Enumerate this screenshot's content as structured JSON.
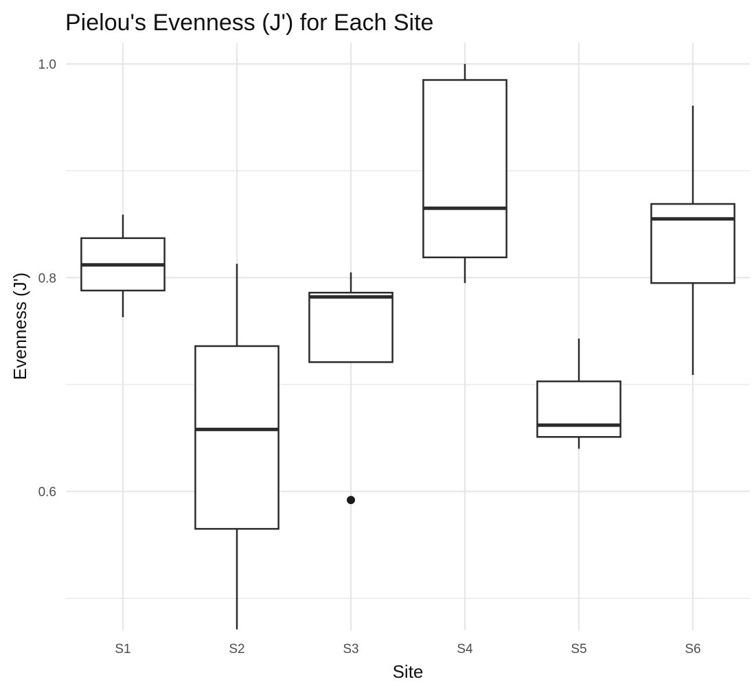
{
  "chart_data": {
    "type": "boxplot",
    "title": "Pielou's Evenness (J') for Each Site",
    "xlabel": "Site",
    "ylabel": "Evenness (J')",
    "ylim": [
      0.47,
      1.02
    ],
    "y_ticks": [
      0.6,
      0.8,
      1.0
    ],
    "y_tick_labels": [
      "0.6",
      "0.8",
      "1.0"
    ],
    "y_minor_gridlines": [
      0.5,
      0.7,
      0.9
    ],
    "categories": [
      "S1",
      "S2",
      "S3",
      "S4",
      "S5",
      "S6"
    ],
    "boxes": [
      {
        "category": "S1",
        "whisker_low": 0.763,
        "q1": 0.788,
        "median": 0.812,
        "q3": 0.837,
        "whisker_high": 0.859,
        "outliers": []
      },
      {
        "category": "S2",
        "whisker_low": 0.471,
        "q1": 0.565,
        "median": 0.658,
        "q3": 0.736,
        "whisker_high": 0.813,
        "outliers": []
      },
      {
        "category": "S3",
        "whisker_low": 0.721,
        "q1": 0.721,
        "median": 0.782,
        "q3": 0.786,
        "whisker_high": 0.805,
        "outliers": [
          0.592
        ]
      },
      {
        "category": "S4",
        "whisker_low": 0.795,
        "q1": 0.819,
        "median": 0.865,
        "q3": 0.985,
        "whisker_high": 1.0,
        "outliers": []
      },
      {
        "category": "S5",
        "whisker_low": 0.64,
        "q1": 0.651,
        "median": 0.662,
        "q3": 0.703,
        "whisker_high": 0.743,
        "outliers": []
      },
      {
        "category": "S6",
        "whisker_low": 0.709,
        "q1": 0.795,
        "median": 0.855,
        "q3": 0.869,
        "whisker_high": 0.961,
        "outliers": []
      }
    ],
    "grid": true,
    "legend": "none",
    "colors": {
      "box_stroke": "#2b2b2b",
      "box_fill": "#ffffff",
      "grid": "#e5e5e5",
      "outlier": "#1a1a1a"
    }
  }
}
